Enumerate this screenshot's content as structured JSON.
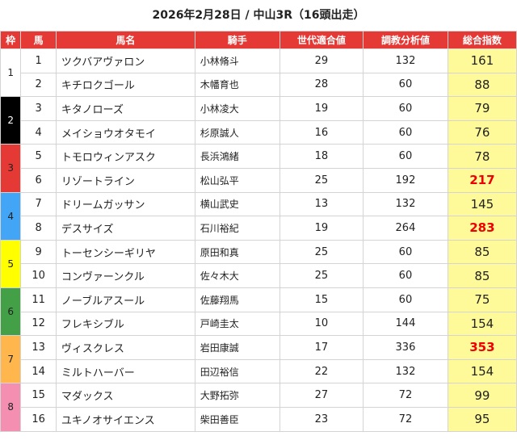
{
  "title": "2026年2月28日 / 中山3R（16頭出走）",
  "columns": [
    "枠",
    "馬",
    "馬名",
    "騎手",
    "世代適合値",
    "調教分析値",
    "総合指数"
  ],
  "waku_colors": {
    "1": {
      "bg": "#ffffff",
      "fg": "#222222"
    },
    "2": {
      "bg": "#000000",
      "fg": "#ffffff"
    },
    "3": {
      "bg": "#e53935",
      "fg": "#222222"
    },
    "4": {
      "bg": "#42a5f5",
      "fg": "#222222"
    },
    "5": {
      "bg": "#ffff00",
      "fg": "#222222"
    },
    "6": {
      "bg": "#43a047",
      "fg": "#222222"
    },
    "7": {
      "bg": "#ffb74d",
      "fg": "#222222"
    },
    "8": {
      "bg": "#f48fb1",
      "fg": "#222222"
    }
  },
  "highlight_color": "#ee0000",
  "total_bg": "#fffa99",
  "rows": [
    {
      "waku": "1",
      "uma": "1",
      "name": "ツクバアヴァロン",
      "jockey": "小林脩斗",
      "sedai": "29",
      "chokyo": "132",
      "total": "161",
      "highlight": false
    },
    {
      "waku": "1",
      "uma": "2",
      "name": "キチロクゴール",
      "jockey": "木幡育也",
      "sedai": "28",
      "chokyo": "60",
      "total": "88",
      "highlight": false
    },
    {
      "waku": "2",
      "uma": "3",
      "name": "キタノローズ",
      "jockey": "小林凌大",
      "sedai": "19",
      "chokyo": "60",
      "total": "79",
      "highlight": false
    },
    {
      "waku": "2",
      "uma": "4",
      "name": "メイショウオタモイ",
      "jockey": "杉原誠人",
      "sedai": "16",
      "chokyo": "60",
      "total": "76",
      "highlight": false
    },
    {
      "waku": "3",
      "uma": "5",
      "name": "トモロウィンアスク",
      "jockey": "長浜鴻緒",
      "sedai": "18",
      "chokyo": "60",
      "total": "78",
      "highlight": false
    },
    {
      "waku": "3",
      "uma": "6",
      "name": "リゾートライン",
      "jockey": "松山弘平",
      "sedai": "25",
      "chokyo": "192",
      "total": "217",
      "highlight": true
    },
    {
      "waku": "4",
      "uma": "7",
      "name": "ドリームガッサン",
      "jockey": "横山武史",
      "sedai": "13",
      "chokyo": "132",
      "total": "145",
      "highlight": false
    },
    {
      "waku": "4",
      "uma": "8",
      "name": "デスサイズ",
      "jockey": "石川裕紀",
      "sedai": "19",
      "chokyo": "264",
      "total": "283",
      "highlight": true
    },
    {
      "waku": "5",
      "uma": "9",
      "name": "トーセンシーギリヤ",
      "jockey": "原田和真",
      "sedai": "25",
      "chokyo": "60",
      "total": "85",
      "highlight": false
    },
    {
      "waku": "5",
      "uma": "10",
      "name": "コンヴァーンクル",
      "jockey": "佐々木大",
      "sedai": "25",
      "chokyo": "60",
      "total": "85",
      "highlight": false
    },
    {
      "waku": "6",
      "uma": "11",
      "name": "ノーブルアスール",
      "jockey": "佐藤翔馬",
      "sedai": "15",
      "chokyo": "60",
      "total": "75",
      "highlight": false
    },
    {
      "waku": "6",
      "uma": "12",
      "name": "フレキシブル",
      "jockey": "戸崎圭太",
      "sedai": "10",
      "chokyo": "144",
      "total": "154",
      "highlight": false
    },
    {
      "waku": "7",
      "uma": "13",
      "name": "ヴィスクレス",
      "jockey": "岩田康誠",
      "sedai": "17",
      "chokyo": "336",
      "total": "353",
      "highlight": true
    },
    {
      "waku": "7",
      "uma": "14",
      "name": "ミルトハーバー",
      "jockey": "田辺裕信",
      "sedai": "22",
      "chokyo": "132",
      "total": "154",
      "highlight": false
    },
    {
      "waku": "8",
      "uma": "15",
      "name": "マダックス",
      "jockey": "大野拓弥",
      "sedai": "27",
      "chokyo": "72",
      "total": "99",
      "highlight": false
    },
    {
      "waku": "8",
      "uma": "16",
      "name": "ユキノオサイエンス",
      "jockey": "柴田善臣",
      "sedai": "23",
      "chokyo": "72",
      "total": "95",
      "highlight": false
    }
  ]
}
